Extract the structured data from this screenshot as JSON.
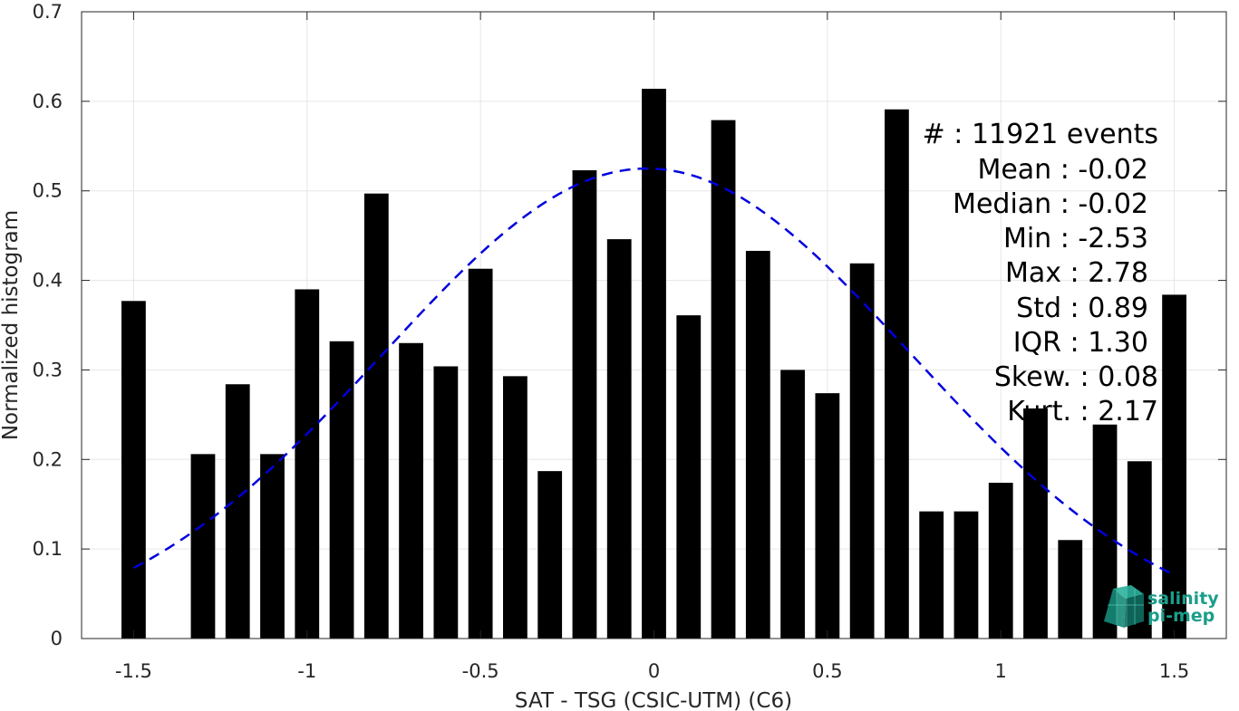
{
  "chart_data": {
    "type": "bar",
    "xlabel": "SAT - TSG (CSIC-UTM) (C6)",
    "ylabel": "Normalized histogram",
    "xlim": [
      -1.65,
      1.65
    ],
    "ylim": [
      0,
      0.7
    ],
    "grid": true,
    "x_ticks": [
      -1.5,
      -1,
      -0.5,
      0,
      0.5,
      1,
      1.5
    ],
    "x_tick_labels": [
      "-1.5",
      "-1",
      "-0.5",
      "0",
      "0.5",
      "1",
      "1.5"
    ],
    "y_ticks": [
      0,
      0.1,
      0.2,
      0.3,
      0.4,
      0.5,
      0.6,
      0.7
    ],
    "y_tick_labels": [
      "0",
      "0.1",
      "0.2",
      "0.3",
      "0.4",
      "0.5",
      "0.6",
      "0.7"
    ],
    "bar_color": "#000000",
    "bar_width": 0.07,
    "x": [
      -1.5,
      -1.4,
      -1.3,
      -1.2,
      -1.1,
      -1.0,
      -0.9,
      -0.8,
      -0.7,
      -0.6,
      -0.5,
      -0.4,
      -0.3,
      -0.2,
      -0.1,
      0.0,
      0.1,
      0.2,
      0.3,
      0.4,
      0.5,
      0.6,
      0.7,
      0.8,
      0.9,
      1.0,
      1.1,
      1.2,
      1.3,
      1.4,
      1.5
    ],
    "values": [
      0.377,
      0.0,
      0.206,
      0.284,
      0.206,
      0.39,
      0.332,
      0.497,
      0.33,
      0.304,
      0.413,
      0.293,
      0.187,
      0.523,
      0.446,
      0.614,
      0.361,
      0.579,
      0.433,
      0.3,
      0.274,
      0.419,
      0.591,
      0.142,
      0.142,
      0.174,
      0.257,
      0.11,
      0.239,
      0.198,
      0.384
    ],
    "fit_curve": {
      "style": "dashed",
      "color": "#0000dd",
      "x_range": [
        -1.5,
        1.5
      ],
      "mean": -0.02,
      "std": 0.76,
      "peak": 0.525
    },
    "stats": {
      "events": "#  : 11921 events",
      "mean": "Mean : -0.02",
      "median": "Median : -0.02",
      "min": "Min : -2.53",
      "max": "Max : 2.78",
      "std": "Std : 0.89",
      "iqr": "IQR : 1.30",
      "skew": "Skew. : 0.08",
      "kurt": "Kurt. : 2.17"
    }
  },
  "logo": {
    "line1": "salinity",
    "line2": "pi-mep",
    "color": "#1a9e8a"
  }
}
